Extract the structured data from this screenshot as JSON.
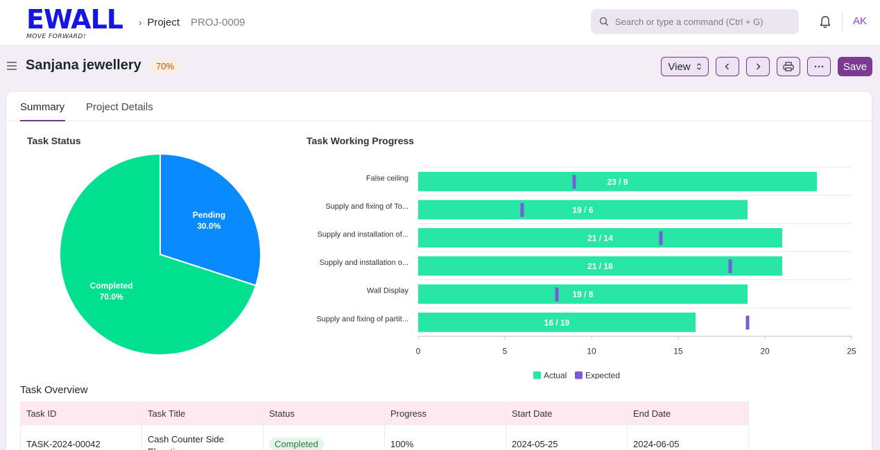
{
  "brand": {
    "name": "EWALL",
    "tagline": "MOVE FORWARD!"
  },
  "breadcrumb": [
    "Project",
    "PROJ-0009"
  ],
  "search": {
    "placeholder": "Search or type a command (Ctrl + G)"
  },
  "user": {
    "initials": "AK"
  },
  "header": {
    "title": "Sanjana jewellery",
    "progress_badge": "70%"
  },
  "toolbar": {
    "view_label": "View",
    "save_label": "Save"
  },
  "tabs": [
    {
      "label": "Summary",
      "active": true
    },
    {
      "label": "Project Details",
      "active": false
    }
  ],
  "task_status": {
    "title": "Task Status",
    "chart_data": {
      "type": "pie",
      "slices": [
        {
          "label": "Pending",
          "value": 30.0,
          "display": "30.0%",
          "color": "#0a8aff"
        },
        {
          "label": "Completed",
          "value": 70.0,
          "display": "70.0%",
          "color": "#00e08f"
        }
      ]
    }
  },
  "task_progress": {
    "title": "Task Working Progress",
    "chart_data": {
      "type": "bar",
      "orientation": "horizontal",
      "categories": [
        "False ceiling",
        "Supply and fixing of To...",
        "Supply and installation of...",
        "Supply and installation o...",
        "Wall Display",
        "Supply and fixing of partit..."
      ],
      "series": [
        {
          "name": "Actual",
          "values": [
            23,
            19,
            21,
            21,
            19,
            16
          ],
          "color": "#27e6a6"
        },
        {
          "name": "Expected",
          "values": [
            9,
            6,
            14,
            18,
            8,
            19
          ],
          "color": "#7b5cd6"
        }
      ],
      "data_labels": [
        "23 / 9",
        "19 / 6",
        "21 / 14",
        "21 / 18",
        "19 / 8",
        "16 / 19"
      ],
      "xlim": [
        0,
        25
      ],
      "xticks": [
        0,
        5,
        10,
        15,
        20,
        25
      ],
      "legend": "bottom"
    }
  },
  "overview": {
    "title": "Task Overview",
    "columns": [
      "Task ID",
      "Task Title",
      "Status",
      "Progress",
      "Start Date",
      "End Date"
    ],
    "rows": [
      {
        "id": "TASK-2024-00042",
        "title": "Cash Counter Side Elevation",
        "status": "Completed",
        "progress": "100%",
        "start": "2024-05-25",
        "end": "2024-06-05"
      }
    ]
  }
}
